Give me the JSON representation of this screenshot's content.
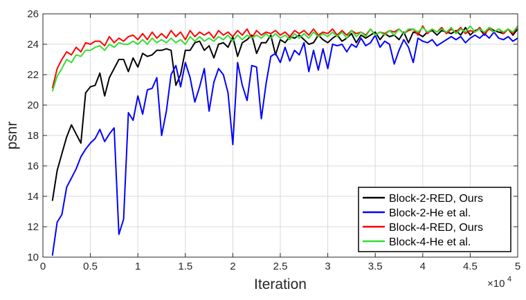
{
  "chart_data": {
    "type": "line",
    "title": "",
    "xlabel": "Iteration",
    "ylabel": "psnr",
    "x_exponent_label": "×10",
    "x_exponent_power": "4",
    "xlim": [
      0,
      5
    ],
    "ylim": [
      10,
      26
    ],
    "grid": true,
    "legend_position": "bottom-right",
    "x_ticks": [
      "0",
      "0.5",
      "1",
      "1.5",
      "2",
      "2.5",
      "3",
      "3.5",
      "4",
      "4.5",
      "5"
    ],
    "y_ticks": [
      "10",
      "12",
      "14",
      "16",
      "18",
      "20",
      "22",
      "24",
      "26"
    ],
    "x": [
      0.1,
      0.15,
      0.2,
      0.25,
      0.3,
      0.35,
      0.4,
      0.45,
      0.5,
      0.55,
      0.6,
      0.65,
      0.7,
      0.75,
      0.8,
      0.85,
      0.9,
      0.95,
      1.0,
      1.05,
      1.1,
      1.15,
      1.2,
      1.25,
      1.3,
      1.35,
      1.4,
      1.45,
      1.5,
      1.55,
      1.6,
      1.65,
      1.7,
      1.75,
      1.8,
      1.85,
      1.9,
      1.95,
      2.0,
      2.05,
      2.1,
      2.15,
      2.2,
      2.25,
      2.3,
      2.35,
      2.4,
      2.45,
      2.5,
      2.55,
      2.6,
      2.65,
      2.7,
      2.75,
      2.8,
      2.85,
      2.9,
      2.95,
      3.0,
      3.05,
      3.1,
      3.15,
      3.2,
      3.25,
      3.3,
      3.35,
      3.4,
      3.45,
      3.5,
      3.55,
      3.6,
      3.65,
      3.7,
      3.75,
      3.8,
      3.85,
      3.9,
      3.95,
      4.0,
      4.05,
      4.1,
      4.15,
      4.2,
      4.25,
      4.3,
      4.35,
      4.4,
      4.45,
      4.5,
      4.55,
      4.6,
      4.65,
      4.7,
      4.75,
      4.8,
      4.85,
      4.9,
      4.95,
      5.0
    ],
    "series": [
      {
        "name": "Block-2-RED, Ours",
        "color": "#000000",
        "values": [
          13.7,
          15.7,
          16.8,
          17.9,
          18.7,
          18.1,
          17.5,
          20.8,
          21.2,
          21.3,
          22.1,
          20.6,
          21.8,
          22.4,
          23.0,
          23.0,
          22.2,
          23.1,
          22.5,
          23.4,
          23.2,
          23.3,
          23.6,
          23.6,
          23.7,
          23.6,
          21.3,
          22.0,
          23.6,
          23.6,
          24.1,
          24.2,
          23.6,
          23.9,
          23.1,
          24.0,
          24.1,
          23.8,
          24.5,
          23.2,
          24.1,
          24.3,
          24.6,
          23.4,
          24.1,
          24.1,
          24.6,
          23.3,
          24.3,
          24.1,
          24.5,
          24.4,
          24.6,
          24.3,
          24.0,
          24.1,
          24.6,
          24.3,
          24.1,
          24.4,
          24.6,
          24.2,
          24.4,
          24.7,
          24.1,
          24.6,
          24.4,
          24.6,
          24.8,
          24.3,
          24.7,
          24.5,
          24.6,
          24.3,
          24.8,
          24.1,
          24.8,
          24.7,
          24.5,
          24.8,
          24.9,
          24.6,
          24.9,
          24.8,
          24.7,
          24.9,
          24.6,
          25.1,
          24.6,
          24.9,
          25.0,
          24.6,
          25.1,
          24.9,
          24.8,
          24.7,
          25.0,
          24.6,
          25.0
        ]
      },
      {
        "name": "Block-2-He et al.",
        "color": "#0000ff",
        "values": [
          10.1,
          12.3,
          12.8,
          14.6,
          15.2,
          15.8,
          16.6,
          17.1,
          17.5,
          17.8,
          18.4,
          17.6,
          18.1,
          18.5,
          11.5,
          12.5,
          19.5,
          19.0,
          20.6,
          19.4,
          21.0,
          21.1,
          21.8,
          18.0,
          19.6,
          22.0,
          22.6,
          21.2,
          22.8,
          21.8,
          20.2,
          21.2,
          22.4,
          19.6,
          21.5,
          22.4,
          22.0,
          20.8,
          17.4,
          22.8,
          21.3,
          20.3,
          22.6,
          22.5,
          19.1,
          21.4,
          23.2,
          23.4,
          22.8,
          23.8,
          22.9,
          23.6,
          23.3,
          24.1,
          22.2,
          23.6,
          22.3,
          23.7,
          22.4,
          24.0,
          23.9,
          24.0,
          23.5,
          24.0,
          23.8,
          24.4,
          23.9,
          24.1,
          24.6,
          23.8,
          24.2,
          24.0,
          22.7,
          23.6,
          24.3,
          23.8,
          22.8,
          24.4,
          24.2,
          24.1,
          24.3,
          23.9,
          24.1,
          24.3,
          24.5,
          24.3,
          24.5,
          24.1,
          24.4,
          24.6,
          24.4,
          24.7,
          24.4,
          24.8,
          24.4,
          24.3,
          24.5,
          24.2,
          24.4
        ]
      },
      {
        "name": "Block-4-RED, Ours",
        "color": "#ff0000",
        "values": [
          21.1,
          22.4,
          23.0,
          23.5,
          23.3,
          23.8,
          23.5,
          24.1,
          24.0,
          24.2,
          24.2,
          23.9,
          24.5,
          24.1,
          24.4,
          24.2,
          24.5,
          24.6,
          24.3,
          24.7,
          24.3,
          24.8,
          24.4,
          24.7,
          24.4,
          24.9,
          24.5,
          24.8,
          24.3,
          24.9,
          24.5,
          24.8,
          24.6,
          24.8,
          24.4,
          24.9,
          24.6,
          24.8,
          24.5,
          24.9,
          24.6,
          25.0,
          24.4,
          24.9,
          24.6,
          24.8,
          24.7,
          24.9,
          24.6,
          24.8,
          24.5,
          24.9,
          24.7,
          24.9,
          24.6,
          25.0,
          24.6,
          24.8,
          24.7,
          25.0,
          24.6,
          24.9,
          24.6,
          24.9,
          24.7,
          24.8,
          24.6,
          25.0,
          24.6,
          24.8,
          24.7,
          24.9,
          24.8,
          25.0,
          24.7,
          24.9,
          25.0,
          24.6,
          25.2,
          24.7,
          25.0,
          24.8,
          25.1,
          24.7,
          25.0,
          24.8,
          25.1,
          24.7,
          24.9,
          24.8,
          25.1,
          24.7,
          25.0,
          24.8,
          25.0,
          24.7,
          25.0,
          24.7,
          25.2
        ]
      },
      {
        "name": "Block-4-He et al.",
        "color": "#33dd33",
        "values": [
          20.9,
          21.9,
          22.4,
          23.0,
          22.8,
          23.3,
          23.2,
          23.6,
          23.6,
          23.8,
          23.9,
          23.6,
          24.0,
          23.8,
          24.1,
          24.0,
          24.0,
          24.2,
          24.0,
          24.3,
          24.0,
          24.4,
          24.1,
          24.3,
          24.1,
          24.4,
          24.1,
          24.3,
          24.0,
          24.5,
          24.2,
          24.5,
          24.2,
          24.4,
          24.2,
          24.5,
          24.3,
          24.6,
          24.2,
          24.6,
          24.3,
          24.6,
          24.4,
          24.6,
          24.4,
          24.7,
          24.4,
          24.7,
          24.4,
          24.6,
          24.3,
          24.7,
          24.4,
          24.7,
          24.4,
          24.8,
          24.5,
          24.7,
          24.5,
          24.8,
          24.5,
          24.8,
          24.4,
          24.9,
          24.5,
          24.8,
          24.5,
          25.0,
          24.6,
          24.8,
          24.6,
          24.9,
          24.6,
          25.0,
          24.7,
          25.0,
          25.0,
          24.8,
          25.1,
          24.8,
          25.0,
          24.8,
          25.0,
          24.8,
          25.1,
          24.7,
          25.0,
          24.8,
          25.2,
          24.8,
          25.0,
          24.8,
          25.1,
          24.8,
          25.0,
          24.8,
          25.0,
          24.8,
          25.2
        ]
      }
    ]
  }
}
